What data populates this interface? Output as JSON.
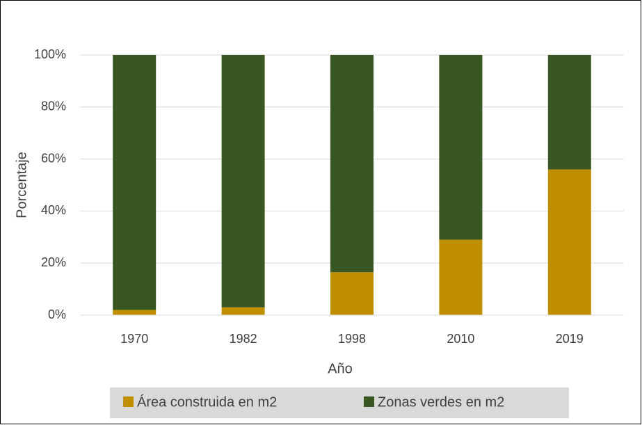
{
  "chart_data": {
    "type": "stacked_bar",
    "x_label": "Año",
    "y_label": "Porcentaje",
    "categories": [
      "1970",
      "1982",
      "1998",
      "2010",
      "2019"
    ],
    "series": [
      {
        "name": "Área construida en m2",
        "color": "#bf8f00",
        "values": [
          2,
          3,
          16.5,
          29,
          56
        ]
      },
      {
        "name": "Zonas verdes en m2",
        "color": "#385723",
        "values": [
          98,
          97,
          83.5,
          71,
          44
        ]
      }
    ],
    "ylim": [
      0,
      100
    ],
    "yticks": [
      {
        "value": 0,
        "label": "0%"
      },
      {
        "value": 20,
        "label": "20%"
      },
      {
        "value": 40,
        "label": "40%"
      },
      {
        "value": 60,
        "label": "60%"
      },
      {
        "value": 80,
        "label": "80%"
      },
      {
        "value": 100,
        "label": "100%"
      }
    ],
    "grid": true,
    "legend": "bottom"
  }
}
